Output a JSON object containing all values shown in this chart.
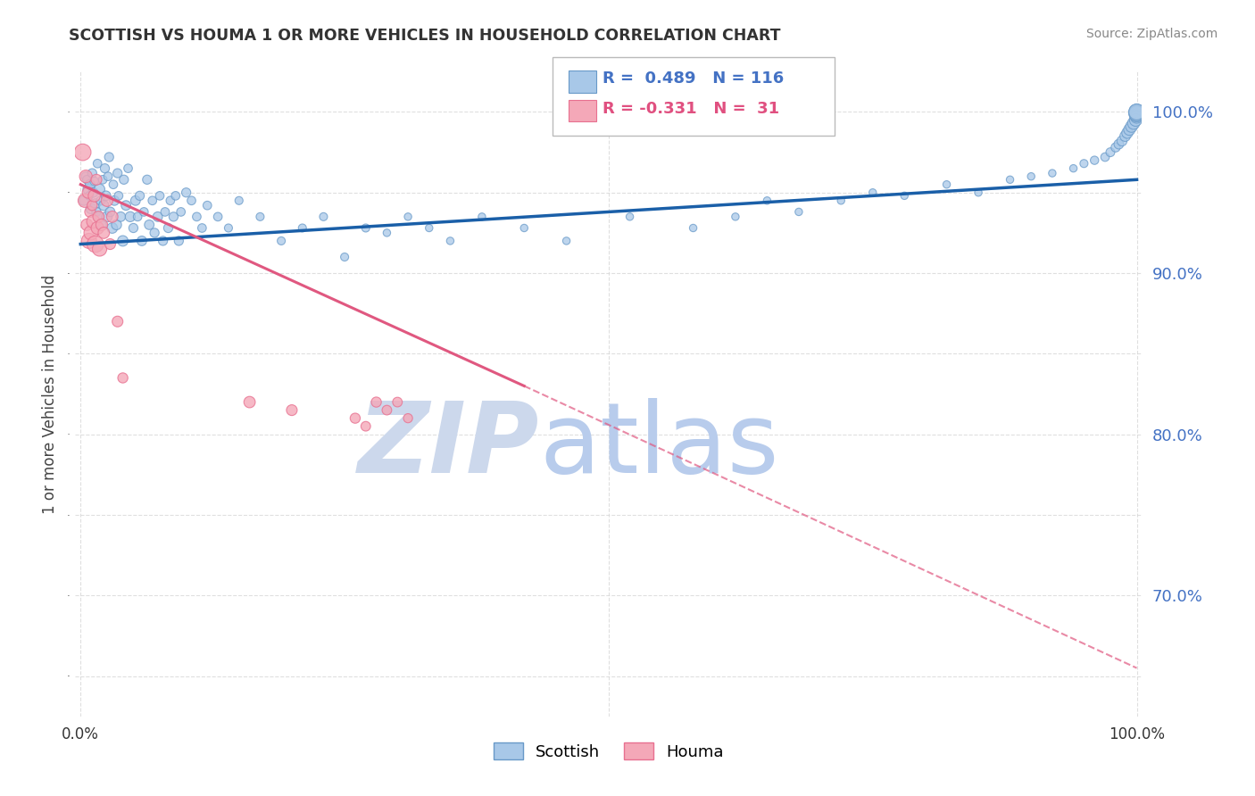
{
  "title": "SCOTTISH VS HOUMA 1 OR MORE VEHICLES IN HOUSEHOLD CORRELATION CHART",
  "ylabel": "1 or more Vehicles in Household",
  "source_text": "Source: ZipAtlas.com",
  "xlim": [
    -0.005,
    1.005
  ],
  "ylim": [
    0.625,
    1.025
  ],
  "xtick_positions": [
    0.0,
    0.5,
    1.0
  ],
  "xtick_labels": [
    "0.0%",
    "",
    "100.0%"
  ],
  "ytick_positions_right": [
    1.0,
    0.9,
    0.8,
    0.7
  ],
  "ytick_labels_right": [
    "100.0%",
    "90.0%",
    "80.0%",
    "70.0%"
  ],
  "r_scottish": 0.489,
  "n_scottish": 116,
  "r_houma": -0.331,
  "n_houma": 31,
  "scottish_color": "#a8c8e8",
  "houma_color": "#f4a8b8",
  "scottish_edge": "#6899c8",
  "houma_edge": "#e87090",
  "trend_blue": "#1a5fa8",
  "trend_pink": "#e05880",
  "watermark_zip_color": "#ccd8ec",
  "watermark_atlas_color": "#b8ccec",
  "background_color": "#ffffff",
  "grid_color": "#d8d8d8",
  "scottish_x": [
    0.003,
    0.005,
    0.006,
    0.007,
    0.008,
    0.009,
    0.01,
    0.011,
    0.012,
    0.013,
    0.014,
    0.015,
    0.016,
    0.017,
    0.018,
    0.019,
    0.02,
    0.021,
    0.022,
    0.023,
    0.024,
    0.025,
    0.026,
    0.027,
    0.028,
    0.03,
    0.031,
    0.032,
    0.034,
    0.035,
    0.036,
    0.038,
    0.04,
    0.041,
    0.043,
    0.045,
    0.047,
    0.05,
    0.052,
    0.054,
    0.056,
    0.058,
    0.06,
    0.063,
    0.065,
    0.068,
    0.07,
    0.073,
    0.075,
    0.078,
    0.08,
    0.083,
    0.085,
    0.088,
    0.09,
    0.093,
    0.095,
    0.1,
    0.105,
    0.11,
    0.115,
    0.12,
    0.13,
    0.14,
    0.15,
    0.17,
    0.19,
    0.21,
    0.23,
    0.25,
    0.27,
    0.29,
    0.31,
    0.33,
    0.35,
    0.38,
    0.42,
    0.46,
    0.52,
    0.58,
    0.62,
    0.65,
    0.68,
    0.72,
    0.75,
    0.78,
    0.82,
    0.85,
    0.88,
    0.9,
    0.92,
    0.94,
    0.95,
    0.96,
    0.97,
    0.975,
    0.98,
    0.983,
    0.986,
    0.989,
    0.991,
    0.993,
    0.995,
    0.997,
    0.999,
    1.0,
    1.0,
    1.0,
    1.0,
    1.0,
    1.0,
    1.0,
    1.0,
    1.0,
    1.0,
    1.0
  ],
  "scottish_y": [
    0.945,
    0.96,
    0.958,
    0.952,
    0.948,
    0.955,
    0.94,
    0.962,
    0.95,
    0.957,
    0.943,
    0.938,
    0.968,
    0.935,
    0.952,
    0.945,
    0.93,
    0.958,
    0.942,
    0.965,
    0.948,
    0.935,
    0.96,
    0.972,
    0.938,
    0.928,
    0.955,
    0.945,
    0.93,
    0.962,
    0.948,
    0.935,
    0.92,
    0.958,
    0.942,
    0.965,
    0.935,
    0.928,
    0.945,
    0.935,
    0.948,
    0.92,
    0.938,
    0.958,
    0.93,
    0.945,
    0.925,
    0.935,
    0.948,
    0.92,
    0.938,
    0.928,
    0.945,
    0.935,
    0.948,
    0.92,
    0.938,
    0.95,
    0.945,
    0.935,
    0.928,
    0.942,
    0.935,
    0.928,
    0.945,
    0.935,
    0.92,
    0.928,
    0.935,
    0.91,
    0.928,
    0.925,
    0.935,
    0.928,
    0.92,
    0.935,
    0.928,
    0.92,
    0.935,
    0.928,
    0.935,
    0.945,
    0.938,
    0.945,
    0.95,
    0.948,
    0.955,
    0.95,
    0.958,
    0.96,
    0.962,
    0.965,
    0.968,
    0.97,
    0.972,
    0.975,
    0.978,
    0.98,
    0.982,
    0.985,
    0.987,
    0.989,
    0.991,
    0.993,
    0.995,
    0.997,
    0.998,
    0.999,
    0.999,
    1.0,
    1.0,
    1.0,
    0.999,
    1.0,
    0.999,
    1.0
  ],
  "scottish_sizes": [
    200,
    180,
    160,
    220,
    150,
    200,
    240,
    180,
    200,
    160,
    220,
    180,
    160,
    200,
    240,
    180,
    200,
    160,
    220,
    180,
    200,
    240,
    160,
    180,
    200,
    240,
    160,
    200,
    220,
    180,
    160,
    200,
    240,
    180,
    200,
    160,
    220,
    180,
    200,
    160,
    180,
    200,
    160,
    180,
    200,
    160,
    180,
    200,
    160,
    180,
    160,
    180,
    160,
    180,
    160,
    180,
    160,
    180,
    160,
    160,
    160,
    160,
    160,
    140,
    140,
    140,
    140,
    140,
    140,
    140,
    140,
    120,
    120,
    120,
    120,
    120,
    120,
    120,
    120,
    120,
    120,
    120,
    120,
    120,
    120,
    120,
    120,
    120,
    120,
    120,
    120,
    120,
    140,
    150,
    160,
    170,
    180,
    200,
    220,
    240,
    260,
    280,
    300,
    320,
    340,
    360,
    380,
    400,
    420,
    440,
    460,
    480,
    500,
    520,
    540,
    560
  ],
  "houma_x": [
    0.002,
    0.004,
    0.005,
    0.006,
    0.007,
    0.008,
    0.009,
    0.01,
    0.011,
    0.012,
    0.013,
    0.014,
    0.015,
    0.016,
    0.017,
    0.018,
    0.02,
    0.022,
    0.025,
    0.028,
    0.03,
    0.035,
    0.04,
    0.16,
    0.2,
    0.26,
    0.27,
    0.28,
    0.29,
    0.3,
    0.31
  ],
  "houma_y": [
    0.975,
    0.945,
    0.96,
    0.93,
    0.95,
    0.92,
    0.938,
    0.925,
    0.942,
    0.932,
    0.948,
    0.918,
    0.958,
    0.928,
    0.935,
    0.915,
    0.93,
    0.925,
    0.945,
    0.918,
    0.935,
    0.87,
    0.835,
    0.82,
    0.815,
    0.81,
    0.805,
    0.82,
    0.815,
    0.82,
    0.81
  ],
  "houma_sizes": [
    600,
    400,
    350,
    300,
    280,
    500,
    250,
    450,
    220,
    380,
    320,
    600,
    250,
    350,
    280,
    450,
    300,
    280,
    300,
    250,
    280,
    250,
    220,
    280,
    250,
    220,
    200,
    220,
    200,
    200,
    180
  ],
  "trend_scottish_x0": 0.0,
  "trend_scottish_x1": 1.0,
  "trend_scottish_y0": 0.918,
  "trend_scottish_y1": 0.958,
  "trend_houma_x0": 0.0,
  "trend_houma_x1": 0.42,
  "trend_houma_y0": 0.955,
  "trend_houma_y1": 0.83,
  "trend_houma_dash_x0": 0.42,
  "trend_houma_dash_x1": 1.0,
  "trend_houma_dash_y0": 0.83,
  "trend_houma_dash_y1": 0.655
}
